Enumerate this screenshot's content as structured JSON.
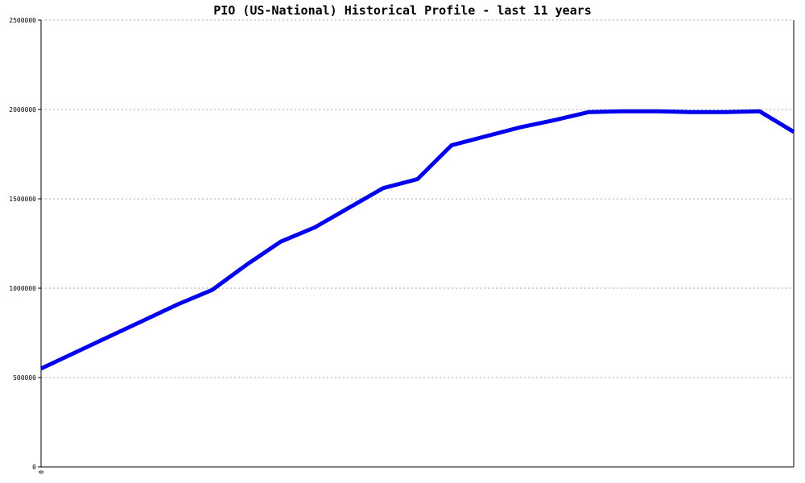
{
  "chart_data": {
    "type": "line",
    "title": "PIO (US-National) Historical Profile - last 11 years",
    "xlabel": "",
    "ylabel": "",
    "ylim": [
      0,
      2500000
    ],
    "xlim": [
      0,
      11
    ],
    "y_ticks": [
      "0",
      "500000",
      "1000000",
      "1500000",
      "2000000",
      "2500000"
    ],
    "y_tick_values": [
      0,
      500000,
      1000000,
      1500000,
      2000000,
      2500000
    ],
    "x_tick_labels": [
      "0"
    ],
    "grid": "horizontal dotted",
    "series": [
      {
        "color": "#0000ee",
        "x": [
          0.0,
          0.5,
          1.0,
          1.5,
          2.0,
          2.5,
          3.0,
          3.5,
          4.0,
          4.5,
          5.0,
          5.5,
          6.0,
          7.0,
          7.5,
          8.0,
          8.5,
          9.0,
          9.5,
          10.0,
          10.5,
          11.0
        ],
        "values": [
          550000,
          640000,
          730000,
          820000,
          910000,
          990000,
          1130000,
          1260000,
          1340000,
          1450000,
          1560000,
          1610000,
          1800000,
          1900000,
          1940000,
          1985000,
          1990000,
          1990000,
          1985000,
          1985000,
          1990000,
          1875000
        ]
      }
    ]
  }
}
